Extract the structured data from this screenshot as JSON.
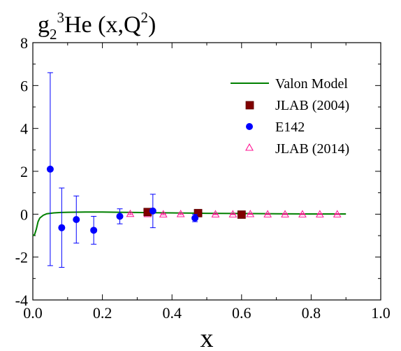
{
  "chart_data": {
    "type": "scatter",
    "title": {
      "g": "g",
      "sub": "2",
      "sup": "3",
      "he": "He (x,Q",
      "q_sup": "2",
      "close": ")"
    },
    "xlabel": "x",
    "ylabel": "",
    "xlim": [
      0.0,
      1.0
    ],
    "ylim": [
      -4,
      8
    ],
    "x_ticks": [
      "0.0",
      "0.2",
      "0.4",
      "0.6",
      "0.8",
      "1.0"
    ],
    "y_ticks": [
      "-4",
      "-2",
      "0",
      "2",
      "4",
      "6",
      "8"
    ],
    "grid": false,
    "legend_position": "top-right",
    "series": [
      {
        "name": "Valon Model",
        "kind": "line",
        "color": "#008000",
        "x": [
          0.0,
          0.005,
          0.01,
          0.015,
          0.02,
          0.03,
          0.04,
          0.06,
          0.08,
          0.1,
          0.15,
          0.2,
          0.25,
          0.3,
          0.35,
          0.4,
          0.45,
          0.5,
          0.6,
          0.7,
          0.8,
          0.9
        ],
        "y": [
          -1.0,
          -0.95,
          -0.7,
          -0.35,
          -0.18,
          -0.05,
          0.02,
          0.06,
          0.08,
          0.09,
          0.1,
          0.1,
          0.09,
          0.08,
          0.07,
          0.06,
          0.05,
          0.04,
          0.03,
          0.02,
          0.01,
          0.01
        ]
      },
      {
        "name": "JLAB (2004)",
        "kind": "square",
        "color": "#800000",
        "x": [
          0.33,
          0.475,
          0.6
        ],
        "y": [
          0.1,
          0.05,
          -0.02
        ],
        "err": [
          0.05,
          0.05,
          0.05
        ]
      },
      {
        "name": "E142",
        "kind": "circle",
        "color": "#0000ff",
        "x": [
          0.05,
          0.083,
          0.125,
          0.175,
          0.25,
          0.345,
          0.466
        ],
        "y": [
          2.1,
          -0.63,
          -0.25,
          -0.75,
          -0.1,
          0.15,
          -0.18
        ],
        "err": [
          4.5,
          1.85,
          1.1,
          0.65,
          0.35,
          0.78,
          0.17
        ]
      },
      {
        "name": "JLAB (2014)",
        "kind": "triangle",
        "color": "#ff1493",
        "x": [
          0.28,
          0.33,
          0.375,
          0.425,
          0.475,
          0.525,
          0.575,
          0.625,
          0.675,
          0.725,
          0.775,
          0.825,
          0.875
        ],
        "y": [
          0.02,
          0.01,
          0.0,
          0.01,
          0.01,
          0.0,
          0.0,
          0.01,
          0.0,
          0.0,
          0.0,
          0.0,
          0.0
        ],
        "err": [
          0.04,
          0.03,
          0.03,
          0.03,
          0.03,
          0.02,
          0.02,
          0.02,
          0.02,
          0.02,
          0.02,
          0.02,
          0.02
        ]
      }
    ]
  }
}
